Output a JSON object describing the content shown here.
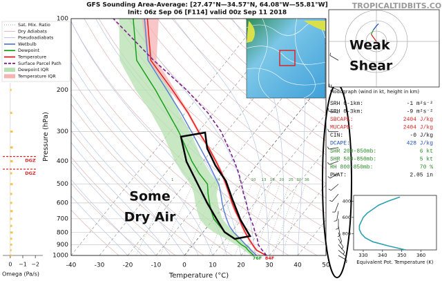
{
  "chart_data": [
    {
      "type": "skewt",
      "title": "GFS Sounding Area-Average: [27.47°N—34.57°N, 64.08°W—55.81°W]",
      "subtitle": "Init: 06z Sep 06 [F114] valid 00z Sep 11 2018",
      "watermark": "TROPICALTIDBITS.COM",
      "xlabel": "Temperature (°C)",
      "ylabel": "Pressure (hPa)",
      "xlim": [
        -40,
        50
      ],
      "xticks": [
        -40,
        -30,
        -20,
        -10,
        0,
        10,
        20,
        30,
        40,
        50
      ],
      "ylim": [
        1000,
        100
      ],
      "yticks": [
        100,
        200,
        300,
        400,
        500,
        600,
        700,
        800,
        900,
        1000
      ],
      "log_y": true,
      "pressure": [
        1000,
        950,
        925,
        900,
        850,
        800,
        750,
        700,
        650,
        600,
        550,
        500,
        450,
        400,
        350,
        300,
        250,
        200,
        150,
        100
      ],
      "reference_lines": [
        {
          "name": "Sat. Mix. Ratio",
          "color": "#8a9a8a"
        },
        {
          "name": "Dry Adiabats",
          "color": "#dcaaaa"
        },
        {
          "name": "Pseudoadiabats",
          "color": "#a9bde6"
        }
      ],
      "series": [
        {
          "name": "Wetbulb",
          "color": "#5b7fd6",
          "values": [
            25.5,
            22,
            20.5,
            18.5,
            15,
            11,
            7.5,
            4.5,
            1.5,
            -1.5,
            -4.5,
            -8,
            -13,
            -18.5,
            -25,
            -32.5,
            -41.5,
            -53,
            -68,
            -81
          ]
        },
        {
          "name": "Dewpoint",
          "color": "#1a9e1a",
          "values": [
            24.5,
            21,
            19.5,
            17,
            13,
            8,
            4,
            0,
            -3,
            -6,
            -9,
            -12,
            -18,
            -24,
            -30,
            -37,
            -46,
            -57,
            -72,
            -85
          ]
        },
        {
          "name": "Temperature",
          "color": "#e31a1c",
          "values": [
            28.9,
            24,
            22.5,
            21,
            18,
            15,
            12,
            9,
            5.5,
            2,
            -1.5,
            -5.5,
            -10,
            -15.5,
            -22,
            -30,
            -39,
            -51,
            -67,
            -80
          ]
        },
        {
          "name": "Surface Parcel Path",
          "color": "#7b1f8e",
          "dash": true,
          "values": [
            29,
            26,
            24.5,
            23,
            21,
            18.5,
            16,
            13,
            10,
            7,
            3.5,
            0,
            -4,
            -9,
            -15,
            -22,
            -32,
            -46,
            -66,
            -92
          ]
        }
      ],
      "iqr": [
        {
          "name": "Dewpoint IQR",
          "color": "#b5e0b0",
          "low": [
            23.5,
            19.5,
            17.5,
            15,
            10,
            4,
            -1,
            -5,
            -8,
            -11,
            -14,
            -18,
            -24,
            -30,
            -36,
            -43,
            -52,
            -64,
            -78,
            -90
          ],
          "high": [
            25,
            22,
            21,
            19,
            15,
            11,
            7,
            3,
            0,
            -3,
            -6,
            -8,
            -14,
            -20,
            -26,
            -33,
            -42,
            -52,
            -66,
            -81
          ]
        },
        {
          "name": "Temperature IQR",
          "color": "#f6b3b3",
          "low": [
            28.3,
            23.5,
            22,
            20.5,
            17.5,
            14.5,
            11.5,
            8.5,
            5,
            1.5,
            -2,
            -6,
            -10.5,
            -16,
            -22.5,
            -30.5,
            -39.5,
            -52,
            -68,
            -82
          ],
          "high": [
            29.3,
            24.5,
            23,
            21.5,
            18.5,
            15.5,
            12.5,
            9.5,
            6,
            2.5,
            -1,
            -5,
            -9.5,
            -15,
            -21.5,
            -29.5,
            -38.5,
            -50,
            -65,
            -76
          ]
        }
      ],
      "mixing_ratios": [
        1,
        2,
        4,
        7,
        10,
        13,
        16,
        20,
        25,
        30,
        36
      ],
      "surface_labels": [
        {
          "text": "76F",
          "color": "#1a9e1a"
        },
        {
          "text": "84F",
          "color": "#e31a1c"
        }
      ],
      "annotations": [
        "Some",
        "Dry Air",
        "Weak",
        "Shear"
      ],
      "wind_barbs": {
        "pressure": [
          150,
          200,
          250,
          300,
          350,
          400,
          450,
          500,
          550,
          600,
          650,
          700,
          750,
          800,
          850,
          900,
          950,
          1000
        ],
        "speed": [
          5,
          10,
          5,
          5,
          5,
          5,
          5,
          5,
          5,
          5,
          5,
          5,
          5,
          5,
          5,
          5,
          5,
          5
        ],
        "direction": [
          300,
          290,
          280,
          270,
          260,
          250,
          240,
          230,
          220,
          200,
          190,
          180,
          170,
          160,
          150,
          140,
          130,
          120
        ]
      }
    },
    {
      "type": "omega",
      "xlabel": "Omega (Pa/s)",
      "xlim": [
        0.6,
        -2.6
      ],
      "xticks": [
        0,
        {
          "value": -1,
          "label": "−1"
        },
        {
          "value": -2,
          "label": "−2"
        }
      ],
      "ylim": [
        1000,
        100
      ],
      "color": "#f5c542",
      "pressure": [
        200,
        250,
        300,
        350,
        400,
        450,
        500,
        550,
        600,
        650,
        700,
        750,
        800,
        850,
        900,
        950,
        1000
      ],
      "values": [
        -0.1,
        -0.15,
        -0.2,
        -0.2,
        -0.2,
        -0.15,
        -0.2,
        -0.15,
        -0.15,
        -0.2,
        -0.15,
        -0.15,
        -0.2,
        -0.15,
        -0.15,
        -0.1,
        -0.1
      ],
      "dgz": [
        {
          "pressure": 432,
          "label": "DGZ"
        },
        {
          "pressure": 382,
          "label": "DGZ"
        }
      ]
    },
    {
      "type": "line",
      "xlabel": "Equivalent Pot. Temperature (K)",
      "xlim": [
        325,
        368
      ],
      "xticks": [
        330,
        340,
        350,
        360
      ],
      "ylim": [
        1000,
        330
      ],
      "yticks": [
        400,
        600,
        800
      ],
      "color": "#2aa1b0",
      "pressure": [
        350,
        400,
        450,
        500,
        550,
        600,
        650,
        700,
        750,
        800,
        850,
        900,
        950,
        1000
      ],
      "values": [
        349,
        343,
        338,
        335,
        332,
        330,
        329,
        328,
        328,
        329,
        331,
        335,
        343,
        352
      ]
    },
    {
      "type": "hodograph",
      "title": "Hodograph (wind in kt, height in km)",
      "rings": [
        10,
        20,
        30
      ],
      "segments": [
        {
          "color": "#d62728",
          "u": [
            0,
            -3,
            -5
          ],
          "v": [
            0,
            4,
            7
          ]
        },
        {
          "color": "#2ca02c",
          "u": [
            -5,
            -3
          ],
          "v": [
            7,
            11
          ]
        },
        {
          "color": "#1f4fb4",
          "u": [
            -3,
            0,
            2
          ],
          "v": [
            11,
            15,
            17
          ]
        }
      ]
    },
    {
      "type": "table",
      "rows": [
        {
          "label": "SRH 0-1km:",
          "value": "-1 m²s⁻²",
          "color": "#111"
        },
        {
          "label": "SRH 0-3km:",
          "value": "-9 m²s⁻²",
          "color": "#111"
        },
        {
          "label": "SBCAPE:",
          "value": "2404 J/kg",
          "color": "#d62728"
        },
        {
          "label": "MUCAPE:",
          "value": "2404 J/kg",
          "color": "#d62728"
        },
        {
          "label": "CIN:",
          "value": "-0 J/kg",
          "color": "#111"
        },
        {
          "label": "DCAPE:",
          "value": "428 J/kg",
          "color": "#1f4fb4"
        },
        {
          "label": "SHR 200-850mb:",
          "value": "6 kt",
          "color": "#2a8a2a"
        },
        {
          "label": "SHR 500-850mb:",
          "value": "5 kt",
          "color": "#2a8a2a"
        },
        {
          "label": "RH 800-850mb:",
          "value": "70 %",
          "color": "#2a8a2a"
        },
        {
          "label": "PWAT:",
          "value": "2.05 in",
          "color": "#111"
        }
      ]
    }
  ]
}
